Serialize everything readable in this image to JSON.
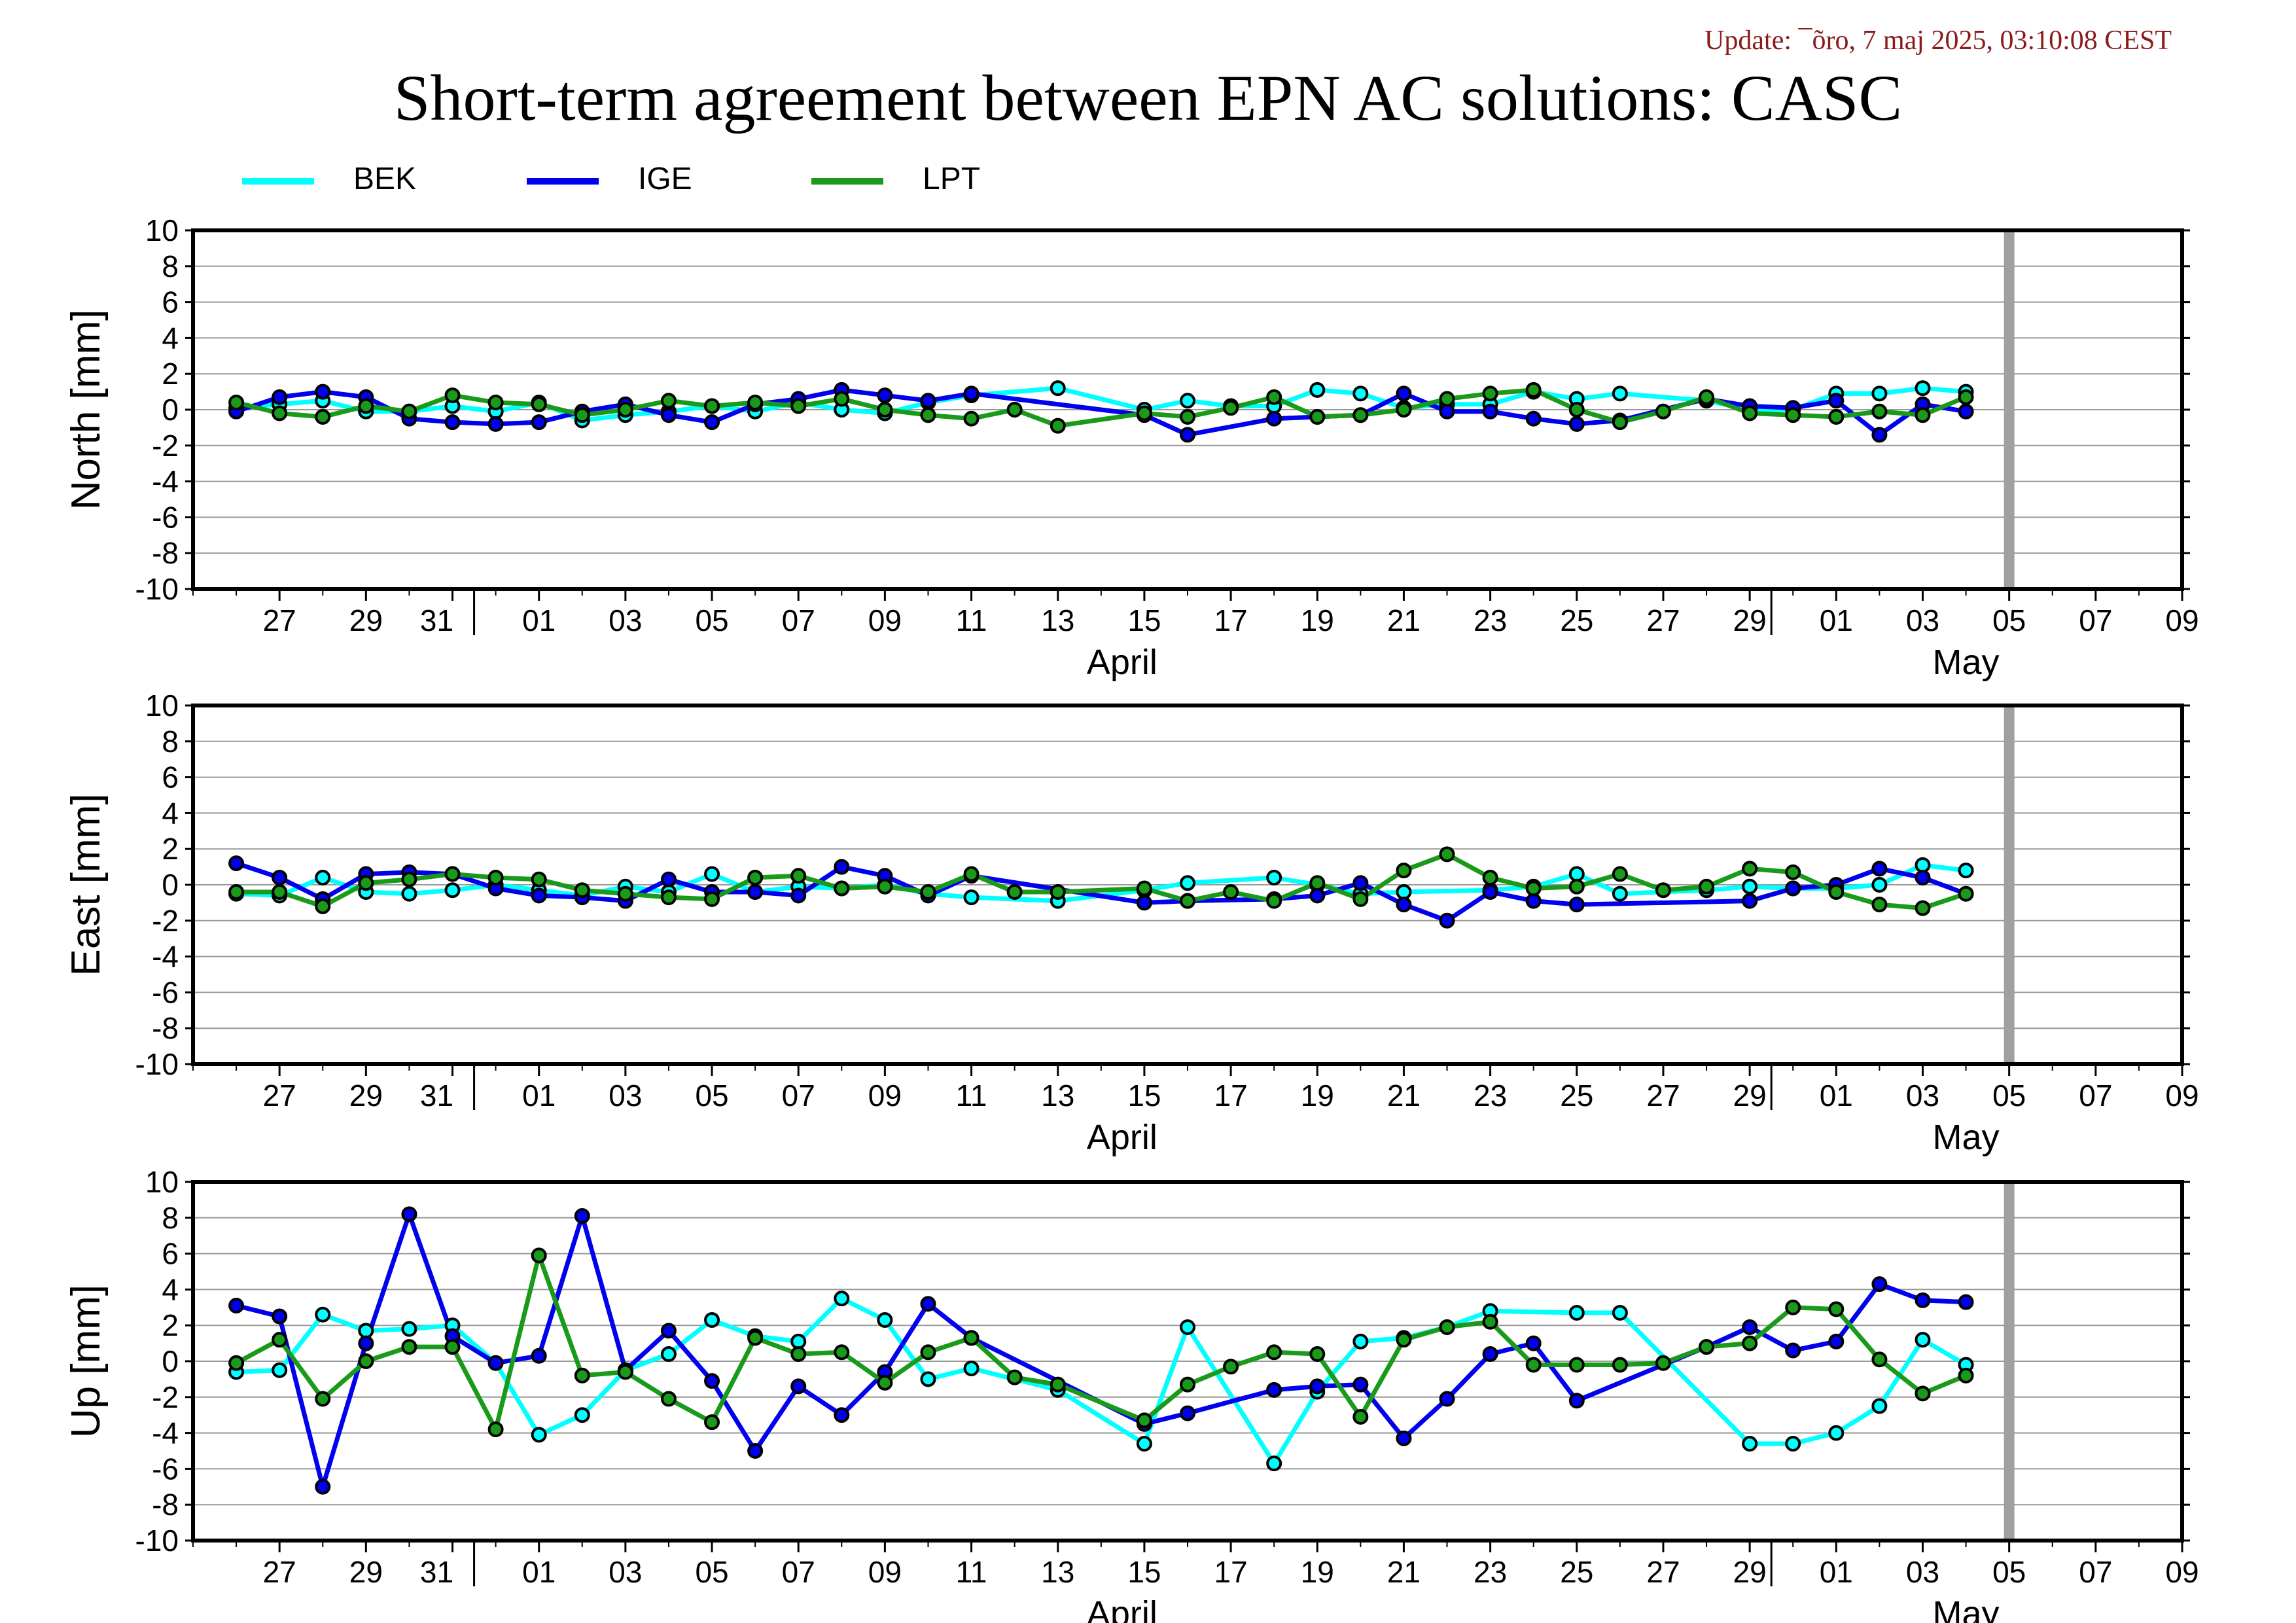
{
  "header": {
    "update": "Update: ¯õro, 7 maj 2025, 03:10:08 CEST",
    "title": "Short-term agreement between EPN AC solutions: CASC"
  },
  "colors": {
    "BEK": "#00ffff",
    "IGE": "#0000ee",
    "LPT": "#1a9a1a",
    "marker_edge": "#000000",
    "grid": "#999999",
    "today_bar": "#a0a0a0"
  },
  "legend": [
    {
      "name": "BEK",
      "color": "#00ffff"
    },
    {
      "name": "IGE",
      "color": "#0000ee"
    },
    {
      "name": "LPT",
      "color": "#1a9a1a"
    }
  ],
  "chart_data": [
    {
      "type": "line",
      "ylabel": "North [mm]",
      "ylim": [
        -10,
        10
      ],
      "yticks": [
        "10",
        "8",
        "6",
        "4",
        "2",
        "0",
        "-2",
        "-4",
        "-6",
        "-8",
        "-10"
      ],
      "xlim": [
        "2025-03-25",
        "2025-05-10"
      ],
      "xtick_labels": [
        "27",
        "29",
        "31",
        "01",
        "03",
        "05",
        "07",
        "09",
        "11",
        "13",
        "15",
        "17",
        "19",
        "21",
        "23",
        "25",
        "27",
        "29",
        "01",
        "03",
        "05",
        "07",
        "09"
      ],
      "month_labels": [
        "April",
        "May"
      ],
      "marker_date": "2025-05-06",
      "x": [
        "03-26",
        "03-27",
        "03-28",
        "03-29",
        "03-30",
        "03-31",
        "04-01",
        "04-02",
        "04-03",
        "04-04",
        "04-05",
        "04-06",
        "04-07",
        "04-08",
        "04-09",
        "04-10",
        "04-11",
        "04-12",
        "04-13",
        "04-14",
        "04-15",
        "04-16",
        "04-17",
        "04-18",
        "04-19",
        "04-20",
        "04-21",
        "04-22",
        "04-23",
        "04-24",
        "04-25",
        "04-26",
        "04-27",
        "04-28",
        "04-29",
        "04-30",
        "05-01",
        "05-02",
        "05-03",
        "05-04",
        "05-05"
      ],
      "series": [
        {
          "name": "BEK",
          "values": [
            0.1,
            0.3,
            0.5,
            -0.1,
            -0.1,
            0.2,
            -0.1,
            0.4,
            -0.6,
            -0.3,
            -0.1,
            0.2,
            -0.1,
            0.4,
            0.0,
            -0.2,
            0.4,
            0.8,
            null,
            1.2,
            null,
            0.0,
            0.5,
            0.2,
            0.2,
            1.1,
            0.9,
            0.1,
            0.3,
            0.3,
            1.0,
            0.6,
            0.9,
            null,
            0.5,
            0.0,
            0.0,
            0.9,
            0.9,
            1.2,
            1.0
          ]
        },
        {
          "name": "IGE",
          "values": [
            -0.1,
            0.7,
            1.0,
            0.7,
            -0.5,
            -0.7,
            -0.8,
            -0.7,
            -0.1,
            0.3,
            -0.3,
            -0.7,
            0.3,
            0.6,
            1.1,
            0.8,
            0.5,
            0.9,
            null,
            null,
            null,
            -0.3,
            -1.4,
            null,
            -0.5,
            -0.4,
            -0.3,
            0.9,
            -0.1,
            -0.1,
            -0.5,
            -0.8,
            -0.6,
            null,
            0.6,
            0.2,
            0.1,
            0.5,
            -1.4,
            0.3,
            -0.1
          ]
        },
        {
          "name": "LPT",
          "values": [
            0.4,
            -0.2,
            -0.4,
            0.2,
            -0.1,
            0.8,
            0.4,
            0.3,
            -0.3,
            0.0,
            0.5,
            0.2,
            0.4,
            0.2,
            0.6,
            0.0,
            -0.3,
            -0.5,
            0.0,
            -0.9,
            null,
            -0.2,
            -0.4,
            0.1,
            0.7,
            -0.4,
            -0.3,
            0.0,
            0.6,
            0.9,
            1.1,
            0.0,
            -0.7,
            -0.1,
            0.7,
            -0.2,
            -0.3,
            -0.4,
            -0.1,
            -0.3,
            0.7
          ]
        }
      ]
    },
    {
      "type": "line",
      "ylabel": "East [mm]",
      "ylim": [
        -10,
        10
      ],
      "yticks": [
        "10",
        "8",
        "6",
        "4",
        "2",
        "0",
        "-2",
        "-4",
        "-6",
        "-8",
        "-10"
      ],
      "xlim": [
        "2025-03-25",
        "2025-05-10"
      ],
      "xtick_labels": [
        "27",
        "29",
        "31",
        "01",
        "03",
        "05",
        "07",
        "09",
        "11",
        "13",
        "15",
        "17",
        "19",
        "21",
        "23",
        "25",
        "27",
        "29",
        "01",
        "03",
        "05",
        "07",
        "09"
      ],
      "month_labels": [
        "April",
        "May"
      ],
      "marker_date": "2025-05-06",
      "x": [
        "03-26",
        "03-27",
        "03-28",
        "03-29",
        "03-30",
        "03-31",
        "04-01",
        "04-02",
        "04-03",
        "04-04",
        "04-05",
        "04-06",
        "04-07",
        "04-08",
        "04-09",
        "04-10",
        "04-11",
        "04-12",
        "04-13",
        "04-14",
        "04-15",
        "04-16",
        "04-17",
        "04-18",
        "04-19",
        "04-20",
        "04-21",
        "04-22",
        "04-23",
        "04-24",
        "04-25",
        "04-26",
        "04-27",
        "04-28",
        "04-29",
        "04-30",
        "05-01",
        "05-02",
        "05-03",
        "05-04",
        "05-05"
      ],
      "series": [
        {
          "name": "BEK",
          "values": [
            -0.5,
            -0.6,
            0.4,
            -0.4,
            -0.5,
            -0.3,
            0.0,
            -0.3,
            -0.6,
            -0.1,
            -0.4,
            0.6,
            -0.4,
            -0.1,
            -0.2,
            0.0,
            -0.5,
            -0.7,
            null,
            -0.9,
            null,
            -0.3,
            0.1,
            null,
            0.4,
            0.0,
            -0.5,
            -0.4,
            null,
            -0.3,
            -0.1,
            0.6,
            -0.5,
            null,
            -0.3,
            -0.1,
            -0.2,
            -0.2,
            0.0,
            1.1,
            0.8
          ]
        },
        {
          "name": "IGE",
          "values": [
            1.2,
            0.4,
            -0.8,
            0.6,
            0.7,
            0.6,
            -0.2,
            -0.6,
            -0.7,
            -0.9,
            0.3,
            -0.4,
            -0.4,
            -0.6,
            1.0,
            0.5,
            -0.6,
            0.5,
            null,
            null,
            null,
            -1.0,
            -0.9,
            null,
            -0.8,
            -0.6,
            0.1,
            -1.1,
            -2.0,
            -0.4,
            -0.9,
            -1.1,
            null,
            null,
            null,
            -0.9,
            -0.2,
            0.0,
            0.9,
            0.4,
            -0.5
          ]
        },
        {
          "name": "LPT",
          "values": [
            -0.4,
            -0.4,
            -1.2,
            0.1,
            0.3,
            0.6,
            0.4,
            0.3,
            -0.3,
            -0.5,
            -0.7,
            -0.8,
            0.4,
            0.5,
            -0.2,
            -0.1,
            -0.4,
            0.6,
            -0.4,
            -0.4,
            null,
            -0.2,
            -0.9,
            -0.4,
            -0.9,
            0.1,
            -0.8,
            0.8,
            1.7,
            0.4,
            -0.2,
            -0.1,
            0.6,
            -0.3,
            -0.1,
            0.9,
            0.7,
            -0.4,
            -1.1,
            -1.3,
            -0.5
          ]
        }
      ]
    },
    {
      "type": "line",
      "ylabel": "Up [mm]",
      "ylim": [
        -10,
        10
      ],
      "yticks": [
        "10",
        "8",
        "6",
        "4",
        "2",
        "0",
        "-2",
        "-4",
        "-6",
        "-8",
        "-10"
      ],
      "xlim": [
        "2025-03-25",
        "2025-05-10"
      ],
      "xtick_labels": [
        "27",
        "29",
        "31",
        "01",
        "03",
        "05",
        "07",
        "09",
        "11",
        "13",
        "15",
        "17",
        "19",
        "21",
        "23",
        "25",
        "27",
        "29",
        "01",
        "03",
        "05",
        "07",
        "09"
      ],
      "month_labels": [
        "April",
        "May"
      ],
      "marker_date": "2025-05-06",
      "x": [
        "03-26",
        "03-27",
        "03-28",
        "03-29",
        "03-30",
        "03-31",
        "04-01",
        "04-02",
        "04-03",
        "04-04",
        "04-05",
        "04-06",
        "04-07",
        "04-08",
        "04-09",
        "04-10",
        "04-11",
        "04-12",
        "04-13",
        "04-14",
        "04-15",
        "04-16",
        "04-17",
        "04-18",
        "04-19",
        "04-20",
        "04-21",
        "04-22",
        "04-23",
        "04-24",
        "04-25",
        "04-26",
        "04-27",
        "04-28",
        "04-29",
        "04-30",
        "05-01",
        "05-02",
        "05-03",
        "05-04",
        "05-05"
      ],
      "series": [
        {
          "name": "BEK",
          "values": [
            -0.6,
            -0.5,
            2.6,
            1.7,
            1.8,
            2.0,
            -0.1,
            -4.1,
            -3.0,
            -0.5,
            0.4,
            2.3,
            1.4,
            1.1,
            3.5,
            2.3,
            -1.0,
            -0.4,
            null,
            -1.6,
            null,
            -4.6,
            1.9,
            null,
            -5.7,
            -1.7,
            1.1,
            1.3,
            1.9,
            2.8,
            null,
            2.7,
            2.7,
            null,
            null,
            -4.6,
            -4.6,
            -4.0,
            -2.5,
            1.2,
            -0.2
          ]
        },
        {
          "name": "IGE",
          "values": [
            3.1,
            2.5,
            -7.0,
            1.0,
            8.2,
            1.4,
            -0.1,
            0.3,
            8.1,
            -0.5,
            1.7,
            -1.1,
            -5.0,
            -1.4,
            -3.0,
            -0.6,
            3.2,
            1.3,
            null,
            null,
            null,
            -3.5,
            -2.9,
            null,
            -1.6,
            -1.4,
            -1.3,
            -4.3,
            -2.1,
            0.4,
            1.0,
            -2.2,
            null,
            null,
            0.8,
            1.9,
            0.6,
            1.1,
            4.3,
            3.4,
            3.3
          ]
        },
        {
          "name": "LPT",
          "values": [
            -0.1,
            1.2,
            -2.1,
            0.0,
            0.8,
            0.8,
            -3.8,
            5.9,
            -0.8,
            -0.6,
            -2.1,
            -3.4,
            1.3,
            0.4,
            0.5,
            -1.2,
            0.5,
            1.3,
            -0.9,
            -1.3,
            null,
            -3.3,
            -1.3,
            -0.3,
            0.5,
            0.4,
            -3.1,
            1.2,
            1.9,
            2.2,
            -0.2,
            -0.2,
            -0.2,
            -0.1,
            0.8,
            1.0,
            3.0,
            2.9,
            0.1,
            -1.8,
            -0.8
          ]
        }
      ]
    }
  ]
}
